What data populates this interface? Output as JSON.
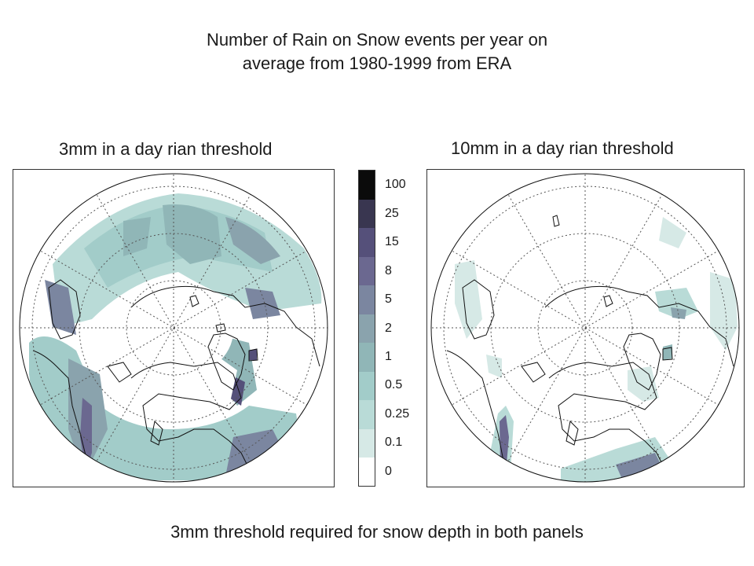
{
  "title_line1": "Number of Rain on Snow events per year on",
  "title_line2": "average from 1980-1999 from ERA",
  "panels": {
    "left_title": "3mm in a day rian threshold",
    "right_title": "10mm in a day rian threshold"
  },
  "colorbar": {
    "labels": [
      "0",
      "0.1",
      "0.25",
      "0.5",
      "1",
      "2",
      "5",
      "8",
      "15",
      "25",
      "100"
    ],
    "colors": [
      "#ffffff",
      "#d6e9e6",
      "#b9dbd7",
      "#a2ccc9",
      "#90b6b7",
      "#8aa3ad",
      "#7b86a0",
      "#6b6890",
      "#55507a",
      "#393650",
      "#0b0b0b"
    ]
  },
  "footer": "3mm threshold required for snow depth in both panels"
}
